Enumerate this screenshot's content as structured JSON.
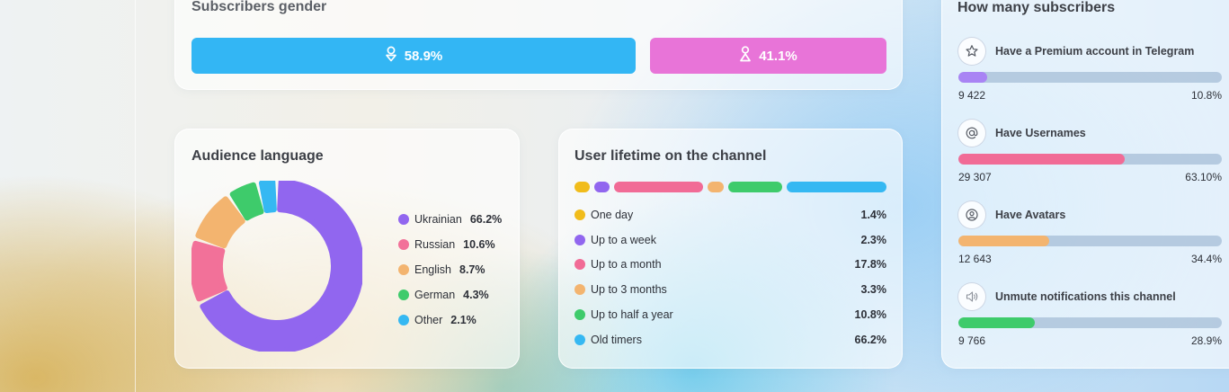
{
  "gender": {
    "title": "Subscribers gender",
    "male": {
      "percent": "58.9%",
      "icon": "male-icon",
      "color": "#33b6f4",
      "share": 58.9
    },
    "female": {
      "percent": "41.1%",
      "icon": "female-icon",
      "color": "#e874d8",
      "share": 41.1
    }
  },
  "language": {
    "title": "Audience language",
    "items": [
      {
        "name": "Ukrainian",
        "percent": "66.2%",
        "value": 66.2,
        "color": "#9166ef"
      },
      {
        "name": "Russian",
        "percent": "10.6%",
        "value": 10.6,
        "color": "#f27199"
      },
      {
        "name": "English",
        "percent": "8.7%",
        "value": 8.7,
        "color": "#f3b46f"
      },
      {
        "name": "German",
        "percent": "4.3%",
        "value": 4.3,
        "color": "#3ecb6b"
      },
      {
        "name": "Other",
        "percent": "2.1%",
        "value": 2.1,
        "color": "#35b8f2"
      }
    ]
  },
  "lifetime": {
    "title": "User lifetime on the channel",
    "items": [
      {
        "label": "One day",
        "percent": "1.4%",
        "color": "#f1bc1b"
      },
      {
        "label": "Up to a week",
        "percent": "2.3%",
        "color": "#9166ef"
      },
      {
        "label": "Up to a month",
        "percent": "17.8%",
        "color": "#f16b96"
      },
      {
        "label": "Up to 3 months",
        "percent": "3.3%",
        "color": "#f3b46f"
      },
      {
        "label": "Up to half a year",
        "percent": "10.8%",
        "color": "#3ecb6b"
      },
      {
        "label": "Old timers",
        "percent": "66.2%",
        "color": "#35b8f2"
      }
    ]
  },
  "subscribers": {
    "title": "How many subscribers",
    "items": [
      {
        "label": "Have a Premium account in Telegram",
        "count": "9 422",
        "percent": "10.8%",
        "share": 10.8,
        "color": "#a984f4",
        "icon": "star-icon"
      },
      {
        "label": "Have Usernames",
        "count": "29 307",
        "percent": "63.10%",
        "share": 63.1,
        "color": "#f16b96",
        "icon": "at-icon"
      },
      {
        "label": "Have Avatars",
        "count": "12 643",
        "percent": "34.4%",
        "share": 34.4,
        "color": "#f3b46f",
        "icon": "avatar-icon"
      },
      {
        "label": "Unmute notifications this channel",
        "count": "9 766",
        "percent": "28.9%",
        "share": 28.9,
        "color": "#3ecb6b",
        "icon": "speaker-icon"
      }
    ]
  }
}
